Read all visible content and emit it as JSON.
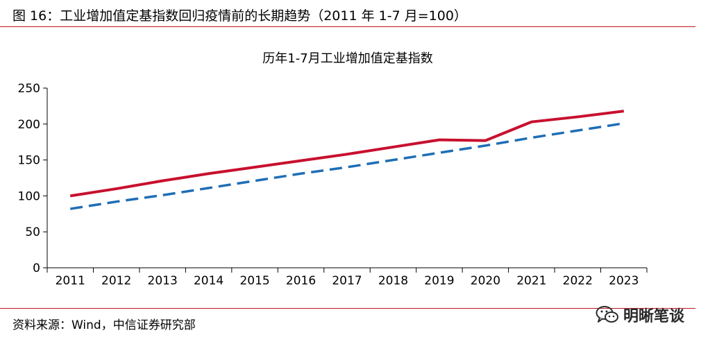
{
  "figure": {
    "title": "图 16：工业增加值定基指数回归疫情前的长期趋势（2011 年 1-7 月=100）",
    "source": "资料来源：Wind，中信证券研究部",
    "watermark": "明晰笔谈",
    "rule_color": "#c0141e"
  },
  "chart_data": {
    "type": "line",
    "title": "历年1-7月工业增加值定基指数",
    "xlabel": "",
    "ylabel": "",
    "categories": [
      "2011",
      "2012",
      "2013",
      "2014",
      "2015",
      "2016",
      "2017",
      "2018",
      "2019",
      "2020",
      "2021",
      "2022",
      "2023"
    ],
    "ylim": [
      0,
      250
    ],
    "yticks": [
      0,
      50,
      100,
      150,
      200,
      250
    ],
    "grid": false,
    "legend": "none",
    "series": [
      {
        "style": "solid",
        "color": "#c8102e",
        "values": [
          100,
          110,
          121,
          131,
          140,
          149,
          158,
          168,
          178,
          177,
          203,
          210,
          218
        ]
      },
      {
        "style": "dashed",
        "color": "#1f6eb5",
        "values": [
          82,
          92,
          101,
          111,
          121,
          131,
          140,
          150,
          160,
          170,
          181,
          191,
          201
        ]
      }
    ]
  }
}
